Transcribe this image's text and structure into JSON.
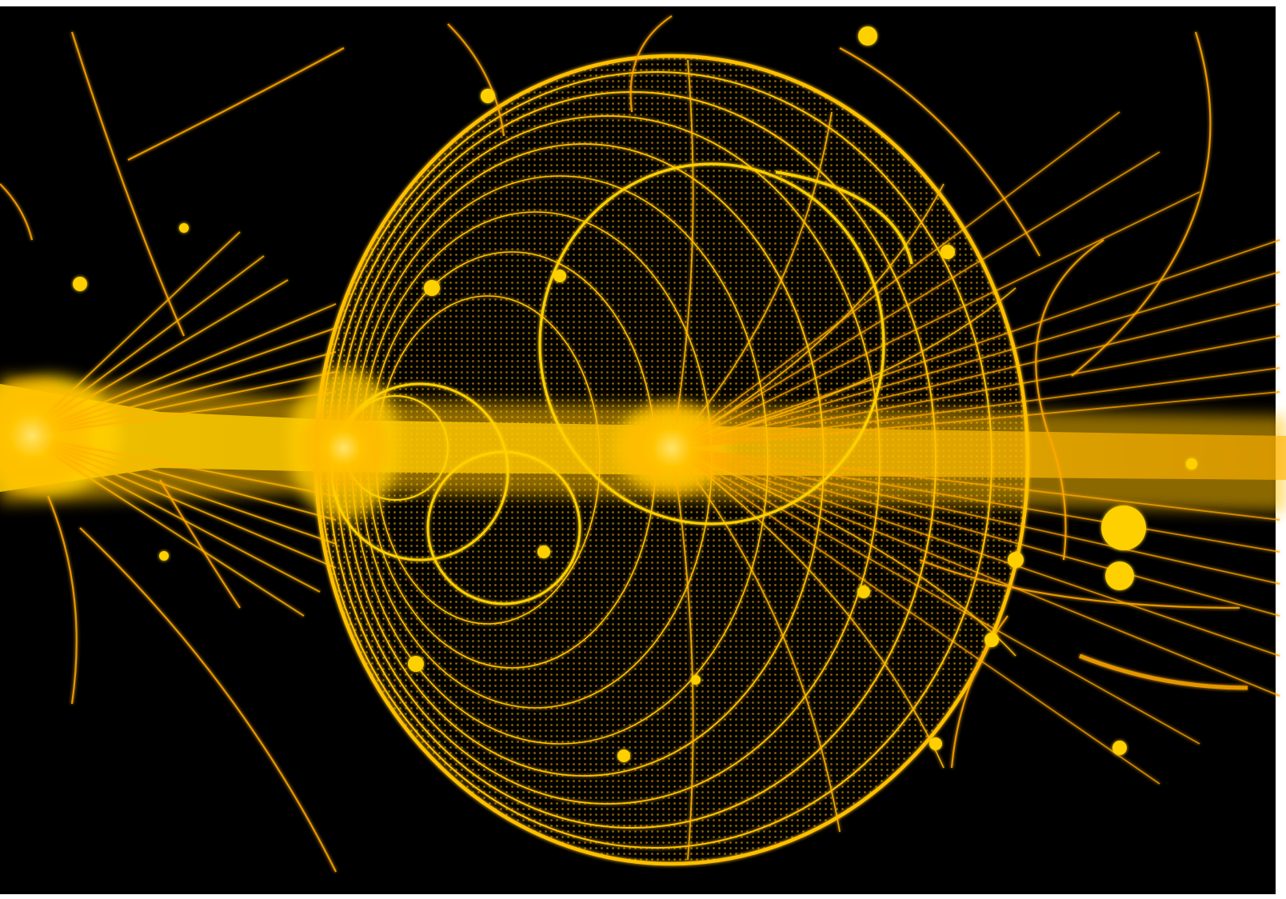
{
  "image": {
    "subject": "bubble-chamber-particle-tracks",
    "colors": {
      "background": "#000000",
      "edge": "#ffffff",
      "track_core": "#ffd21a",
      "track_mid": "#f5a300",
      "track_dim": "#c96a00"
    }
  }
}
